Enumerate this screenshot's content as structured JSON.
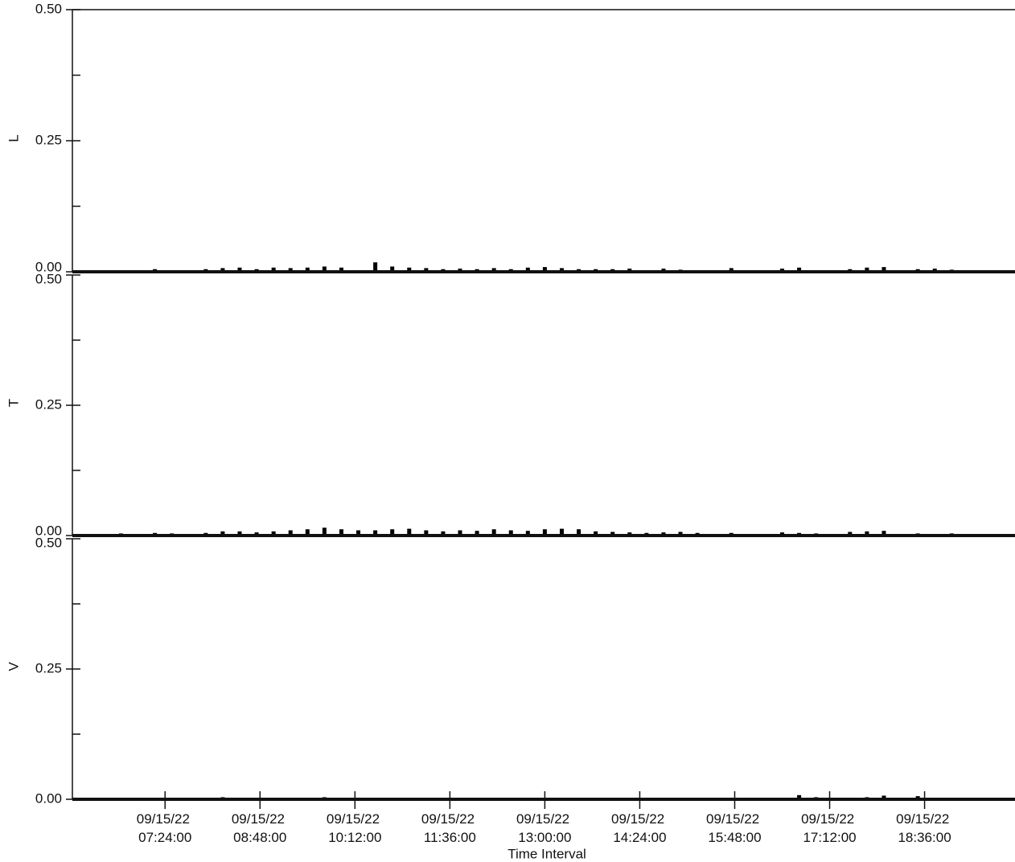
{
  "chart_data": [
    {
      "type": "bar",
      "ylabel": "L",
      "color": "#000000",
      "x": [
        "09/15/22 06:00:00",
        "09/15/22 06:15:00",
        "09/15/22 06:30:00",
        "09/15/22 06:45:00",
        "09/15/22 07:00:00",
        "09/15/22 07:15:00",
        "09/15/22 07:30:00",
        "09/15/22 07:45:00",
        "09/15/22 08:00:00",
        "09/15/22 08:15:00",
        "09/15/22 08:30:00",
        "09/15/22 08:45:00",
        "09/15/22 09:00:00",
        "09/15/22 09:15:00",
        "09/15/22 09:30:00",
        "09/15/22 09:45:00",
        "09/15/22 10:00:00",
        "09/15/22 10:15:00",
        "09/15/22 10:30:00",
        "09/15/22 10:45:00",
        "09/15/22 11:00:00",
        "09/15/22 11:15:00",
        "09/15/22 11:30:00",
        "09/15/22 11:45:00",
        "09/15/22 12:00:00",
        "09/15/22 12:15:00",
        "09/15/22 12:30:00",
        "09/15/22 12:45:00",
        "09/15/22 13:00:00",
        "09/15/22 13:15:00",
        "09/15/22 13:30:00",
        "09/15/22 13:45:00",
        "09/15/22 14:00:00",
        "09/15/22 14:15:00",
        "09/15/22 14:30:00",
        "09/15/22 14:45:00",
        "09/15/22 15:00:00",
        "09/15/22 15:15:00",
        "09/15/22 15:30:00",
        "09/15/22 15:45:00",
        "09/15/22 16:00:00",
        "09/15/22 16:15:00",
        "09/15/22 16:30:00",
        "09/15/22 16:45:00",
        "09/15/22 17:00:00",
        "09/15/22 17:15:00",
        "09/15/22 17:30:00",
        "09/15/22 17:45:00",
        "09/15/22 18:00:00",
        "09/15/22 18:15:00",
        "09/15/22 18:30:00",
        "09/15/22 18:45:00",
        "09/15/22 19:00:00",
        "09/15/22 19:15:00",
        "09/15/22 19:30:00",
        "09/15/22 19:45:00"
      ],
      "values": [
        0,
        0,
        0,
        0.003,
        0,
        0.005,
        0.003,
        0,
        0.005,
        0.007,
        0.008,
        0.005,
        0.008,
        0.007,
        0.008,
        0.01,
        0.008,
        0,
        0.018,
        0.01,
        0.008,
        0.007,
        0.005,
        0.006,
        0.005,
        0.007,
        0.005,
        0.008,
        0.009,
        0.007,
        0.005,
        0.005,
        0.005,
        0.006,
        0.003,
        0.006,
        0.004,
        0,
        0,
        0.007,
        0,
        0.003,
        0.006,
        0.008,
        0.003,
        0,
        0.005,
        0.008,
        0.009,
        0,
        0.005,
        0.006,
        0.004,
        0,
        0,
        0
      ],
      "xlim": [
        "09/15/22 06:02:00",
        "09/15/22 19:56:00"
      ],
      "ylim": [
        0,
        0.5
      ],
      "yticks": [
        {
          "value": 0,
          "label": "0.00"
        },
        0.25,
        {
          "value": 0.5,
          "label": "0.50"
        }
      ],
      "minor_yticks": [
        0.125,
        0.375
      ]
    },
    {
      "type": "bar",
      "ylabel": "T",
      "color": "#000000",
      "x": [
        "09/15/22 06:00:00",
        "09/15/22 06:15:00",
        "09/15/22 06:30:00",
        "09/15/22 06:45:00",
        "09/15/22 07:00:00",
        "09/15/22 07:15:00",
        "09/15/22 07:30:00",
        "09/15/22 07:45:00",
        "09/15/22 08:00:00",
        "09/15/22 08:15:00",
        "09/15/22 08:30:00",
        "09/15/22 08:45:00",
        "09/15/22 09:00:00",
        "09/15/22 09:15:00",
        "09/15/22 09:30:00",
        "09/15/22 09:45:00",
        "09/15/22 10:00:00",
        "09/15/22 10:15:00",
        "09/15/22 10:30:00",
        "09/15/22 10:45:00",
        "09/15/22 11:00:00",
        "09/15/22 11:15:00",
        "09/15/22 11:30:00",
        "09/15/22 11:45:00",
        "09/15/22 12:00:00",
        "09/15/22 12:15:00",
        "09/15/22 12:30:00",
        "09/15/22 12:45:00",
        "09/15/22 13:00:00",
        "09/15/22 13:15:00",
        "09/15/22 13:30:00",
        "09/15/22 13:45:00",
        "09/15/22 14:00:00",
        "09/15/22 14:15:00",
        "09/15/22 14:30:00",
        "09/15/22 14:45:00",
        "09/15/22 15:00:00",
        "09/15/22 15:15:00",
        "09/15/22 15:30:00",
        "09/15/22 15:45:00",
        "09/15/22 16:00:00",
        "09/15/22 16:15:00",
        "09/15/22 16:30:00",
        "09/15/22 16:45:00",
        "09/15/22 17:00:00",
        "09/15/22 17:15:00",
        "09/15/22 17:30:00",
        "09/15/22 17:45:00",
        "09/15/22 18:00:00",
        "09/15/22 18:15:00",
        "09/15/22 18:30:00",
        "09/15/22 18:45:00",
        "09/15/22 19:00:00",
        "09/15/22 19:15:00",
        "09/15/22 19:30:00",
        "09/15/22 19:45:00"
      ],
      "values": [
        0,
        0,
        0.003,
        0.004,
        0.003,
        0.005,
        0.004,
        0.003,
        0.005,
        0.008,
        0.008,
        0.006,
        0.008,
        0.01,
        0.012,
        0.015,
        0.012,
        0.01,
        0.01,
        0.012,
        0.013,
        0.01,
        0.008,
        0.01,
        0.009,
        0.012,
        0.01,
        0.009,
        0.012,
        0.013,
        0.012,
        0.008,
        0.007,
        0.006,
        0.005,
        0.006,
        0.007,
        0.005,
        0,
        0.005,
        0.003,
        0,
        0.006,
        0.005,
        0.004,
        0.003,
        0.007,
        0.008,
        0.009,
        0.003,
        0.004,
        0.003,
        0.004,
        0,
        0,
        0
      ],
      "xlim": [
        "09/15/22 06:02:00",
        "09/15/22 19:56:00"
      ],
      "ylim": [
        0,
        0.5
      ],
      "yticks": [
        {
          "value": 0,
          "label": "0.00"
        },
        0.25,
        {
          "value": 0.5,
          "label": "0.50"
        }
      ],
      "minor_yticks": [
        0.125,
        0.375
      ]
    },
    {
      "type": "bar",
      "ylabel": "V",
      "color": "#000000",
      "xlabel": "Time Interval",
      "x": [
        "09/15/22 06:00:00",
        "09/15/22 06:15:00",
        "09/15/22 06:30:00",
        "09/15/22 06:45:00",
        "09/15/22 07:00:00",
        "09/15/22 07:15:00",
        "09/15/22 07:30:00",
        "09/15/22 07:45:00",
        "09/15/22 08:00:00",
        "09/15/22 08:15:00",
        "09/15/22 08:30:00",
        "09/15/22 08:45:00",
        "09/15/22 09:00:00",
        "09/15/22 09:15:00",
        "09/15/22 09:30:00",
        "09/15/22 09:45:00",
        "09/15/22 10:00:00",
        "09/15/22 10:15:00",
        "09/15/22 10:30:00",
        "09/15/22 10:45:00",
        "09/15/22 11:00:00",
        "09/15/22 11:15:00",
        "09/15/22 11:30:00",
        "09/15/22 11:45:00",
        "09/15/22 12:00:00",
        "09/15/22 12:15:00",
        "09/15/22 12:30:00",
        "09/15/22 12:45:00",
        "09/15/22 13:00:00",
        "09/15/22 13:15:00",
        "09/15/22 13:30:00",
        "09/15/22 13:45:00",
        "09/15/22 14:00:00",
        "09/15/22 14:15:00",
        "09/15/22 14:30:00",
        "09/15/22 14:45:00",
        "09/15/22 15:00:00",
        "09/15/22 15:15:00",
        "09/15/22 15:30:00",
        "09/15/22 15:45:00",
        "09/15/22 16:00:00",
        "09/15/22 16:15:00",
        "09/15/22 16:30:00",
        "09/15/22 16:45:00",
        "09/15/22 17:00:00",
        "09/15/22 17:15:00",
        "09/15/22 17:30:00",
        "09/15/22 17:45:00",
        "09/15/22 18:00:00",
        "09/15/22 18:15:00",
        "09/15/22 18:30:00",
        "09/15/22 18:45:00",
        "09/15/22 19:00:00",
        "09/15/22 19:15:00",
        "09/15/22 19:30:00",
        "09/15/22 19:45:00"
      ],
      "values": [
        0,
        0,
        0.002,
        0,
        0.002,
        0.003,
        0.002,
        0,
        0.002,
        0.004,
        0.003,
        0.002,
        0.003,
        0.002,
        0.003,
        0.004,
        0.003,
        0.002,
        0.002,
        0.003,
        0,
        0.002,
        0,
        0.003,
        0.002,
        0,
        0.002,
        0.003,
        0.003,
        0.002,
        0,
        0,
        0.002,
        0.002,
        0,
        0,
        0.002,
        0,
        0,
        0.002,
        0,
        0,
        0.003,
        0.008,
        0.004,
        0,
        0.002,
        0.004,
        0.007,
        0,
        0.006,
        0.003,
        0.003,
        0,
        0,
        0
      ],
      "xlim": [
        "09/15/22 06:02:00",
        "09/15/22 19:56:00"
      ],
      "xticks": [
        "09/15/22 07:24:00",
        "09/15/22 08:48:00",
        "09/15/22 10:12:00",
        "09/15/22 11:36:00",
        "09/15/22 13:00:00",
        "09/15/22 14:24:00",
        "09/15/22 15:48:00",
        "09/15/22 17:12:00",
        "09/15/22 18:36:00"
      ],
      "ylim": [
        0,
        0.5
      ],
      "yticks": [
        {
          "value": 0,
          "label": "0.00"
        },
        0.25,
        {
          "value": 0.5,
          "label": "0.50"
        }
      ],
      "minor_yticks": [
        0.125,
        0.375
      ]
    }
  ]
}
